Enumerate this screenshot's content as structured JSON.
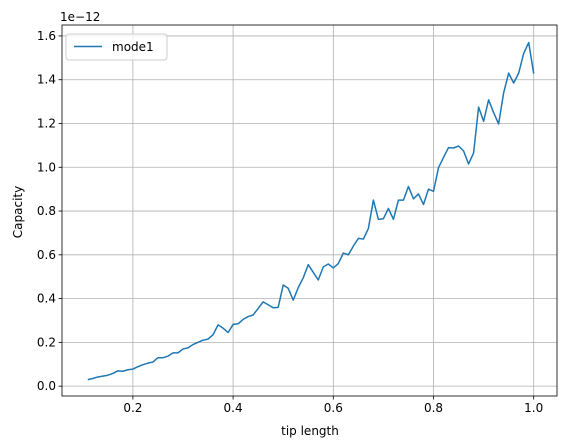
{
  "chart_data": {
    "type": "line",
    "title": "",
    "xlabel": "tip length",
    "ylabel": "Capacity",
    "y_offset_label": "1e−12",
    "xlim": [
      0.0585,
      1.0465
    ],
    "ylim": [
      -0.045,
      1.65
    ],
    "x_ticks": [
      0.2,
      0.4,
      0.6,
      0.8,
      1.0
    ],
    "x_tick_labels": [
      "0.2",
      "0.4",
      "0.6",
      "0.8",
      "1.0"
    ],
    "y_ticks": [
      0.0,
      0.2,
      0.4,
      0.6,
      0.8,
      1.0,
      1.2,
      1.4,
      1.6
    ],
    "y_tick_labels": [
      "0.0",
      "0.2",
      "0.4",
      "0.6",
      "0.8",
      "1.0",
      "1.2",
      "1.4",
      "1.6"
    ],
    "grid": true,
    "legend": "top-left",
    "colors": {
      "series": "#1f77b4",
      "grid": "#b0b0b0",
      "axis": "#000000"
    },
    "series": [
      {
        "name": "mode1",
        "x": [
          0.11,
          0.12,
          0.13,
          0.14,
          0.15,
          0.16,
          0.17,
          0.18,
          0.19,
          0.2,
          0.21,
          0.22,
          0.23,
          0.24,
          0.25,
          0.26,
          0.27,
          0.28,
          0.29,
          0.3,
          0.31,
          0.32,
          0.33,
          0.34,
          0.35,
          0.36,
          0.37,
          0.38,
          0.39,
          0.4,
          0.41,
          0.42,
          0.43,
          0.44,
          0.45,
          0.46,
          0.47,
          0.48,
          0.49,
          0.5,
          0.51,
          0.52,
          0.53,
          0.54,
          0.55,
          0.56,
          0.57,
          0.58,
          0.59,
          0.6,
          0.61,
          0.62,
          0.63,
          0.64,
          0.65,
          0.66,
          0.67,
          0.68,
          0.69,
          0.7,
          0.71,
          0.72,
          0.73,
          0.74,
          0.75,
          0.76,
          0.77,
          0.78,
          0.79,
          0.8,
          0.81,
          0.82,
          0.83,
          0.84,
          0.85,
          0.86,
          0.87,
          0.88,
          0.89,
          0.9,
          0.91,
          0.92,
          0.93,
          0.94,
          0.95,
          0.96,
          0.97,
          0.98,
          0.99,
          1.0
        ],
        "y": [
          0.03,
          0.035,
          0.042,
          0.046,
          0.05,
          0.058,
          0.07,
          0.068,
          0.075,
          0.078,
          0.089,
          0.098,
          0.105,
          0.11,
          0.13,
          0.13,
          0.137,
          0.152,
          0.152,
          0.17,
          0.175,
          0.19,
          0.2,
          0.21,
          0.215,
          0.235,
          0.28,
          0.265,
          0.245,
          0.282,
          0.285,
          0.305,
          0.318,
          0.325,
          0.355,
          0.385,
          0.372,
          0.358,
          0.36,
          0.462,
          0.447,
          0.393,
          0.45,
          0.495,
          0.555,
          0.52,
          0.485,
          0.545,
          0.558,
          0.54,
          0.56,
          0.608,
          0.6,
          0.64,
          0.675,
          0.672,
          0.72,
          0.85,
          0.762,
          0.765,
          0.812,
          0.762,
          0.85,
          0.85,
          0.912,
          0.856,
          0.878,
          0.83,
          0.9,
          0.89,
          0.998,
          1.045,
          1.09,
          1.088,
          1.097,
          1.075,
          1.015,
          1.065,
          1.275,
          1.21,
          1.308,
          1.25,
          1.198,
          1.34,
          1.43,
          1.385,
          1.43,
          1.52,
          1.57,
          1.428
        ]
      }
    ]
  }
}
